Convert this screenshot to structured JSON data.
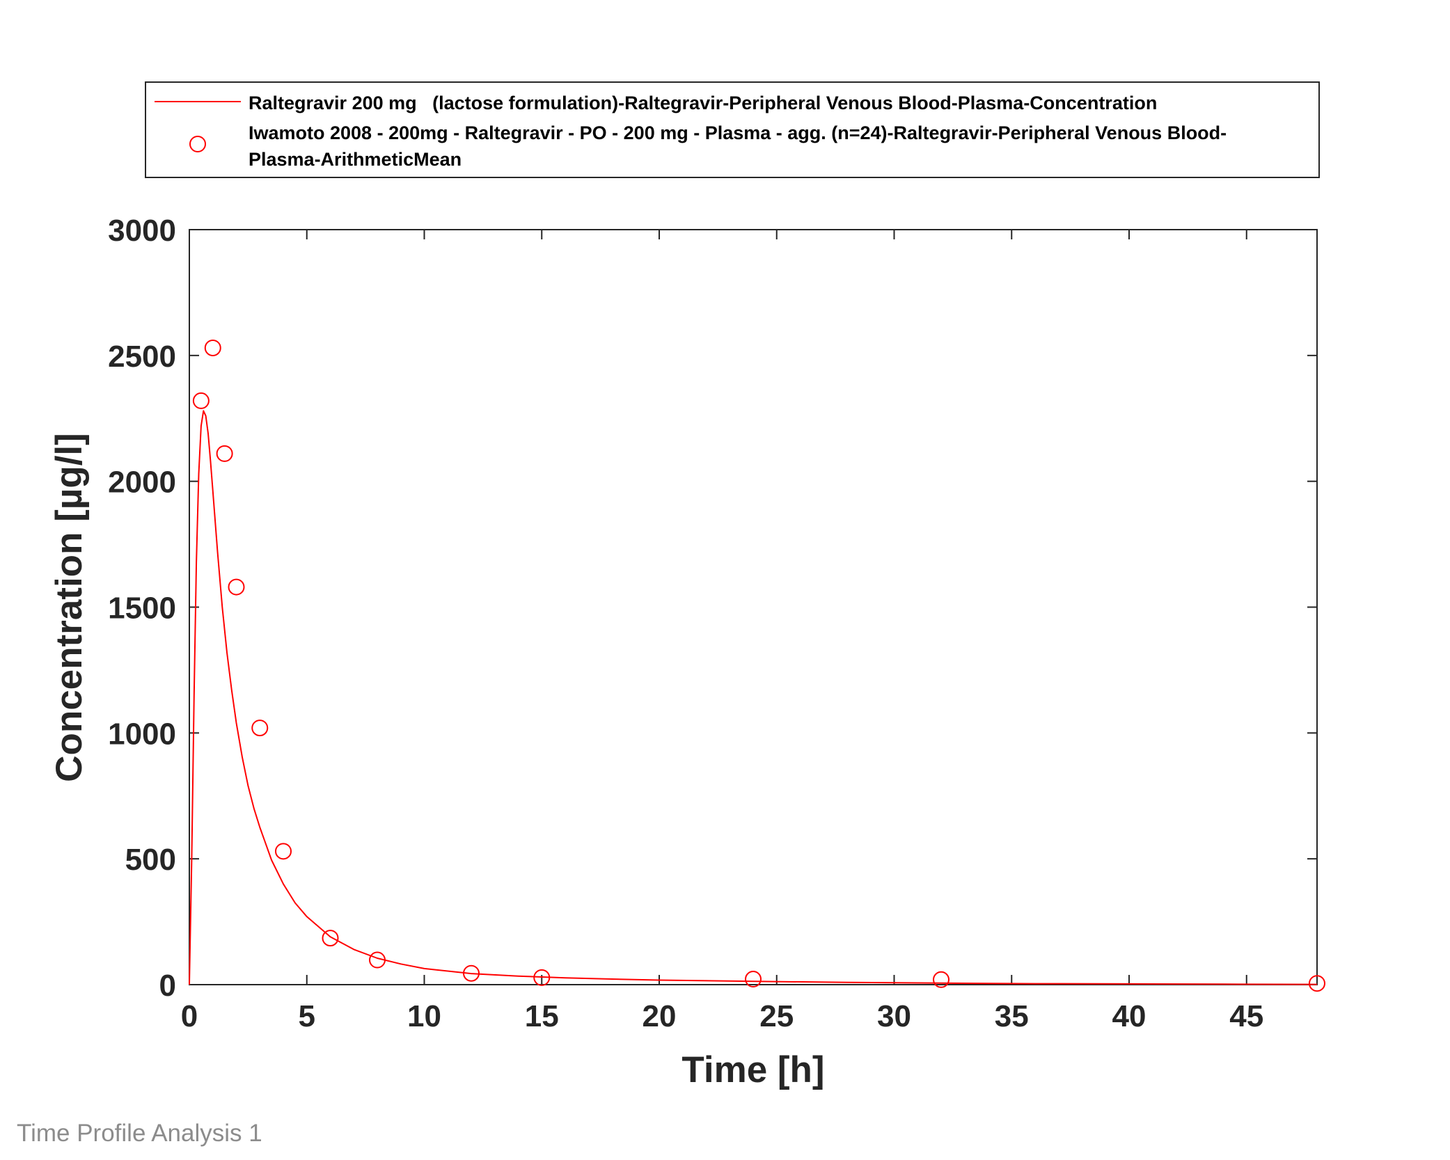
{
  "chart_data": {
    "type": "line",
    "xlabel": "Time [h]",
    "ylabel": "Concentration [µg/l]",
    "xlim": [
      0,
      48
    ],
    "ylim": [
      0,
      3000
    ],
    "xticks": [
      0,
      5,
      10,
      15,
      20,
      25,
      30,
      35,
      40,
      45
    ],
    "xtick_labels": [
      "0",
      "5",
      "10",
      "15",
      "20",
      "25",
      "30",
      "35",
      "40",
      "45"
    ],
    "yticks": [
      0,
      500,
      1000,
      1500,
      2000,
      2500,
      3000
    ],
    "ytick_labels": [
      "0",
      "500",
      "1000",
      "1500",
      "2000",
      "2500",
      "3000"
    ],
    "grid": false,
    "legend_position": "top (outside plot)",
    "series": [
      {
        "name": "Raltegravir 200 mg   (lactose formulation)-Raltegravir-Peripheral Venous Blood-Plasma-Concentration",
        "kind": "line",
        "color": "#ff0000",
        "x": [
          0,
          0.1,
          0.2,
          0.3,
          0.4,
          0.5,
          0.6,
          0.7,
          0.8,
          0.9,
          1.0,
          1.2,
          1.4,
          1.6,
          1.8,
          2.0,
          2.25,
          2.5,
          2.75,
          3.0,
          3.5,
          4.0,
          4.5,
          5.0,
          6.0,
          7.0,
          8.0,
          9.0,
          10.0,
          12.0,
          14.0,
          16.0,
          18.0,
          20.0,
          24.0,
          28.0,
          32.0,
          36.0,
          40.0,
          44.0,
          48.0
        ],
        "y": [
          0,
          500,
          1150,
          1680,
          2030,
          2220,
          2280,
          2260,
          2190,
          2080,
          1960,
          1720,
          1500,
          1320,
          1170,
          1040,
          905,
          790,
          700,
          625,
          495,
          400,
          325,
          270,
          190,
          140,
          105,
          82,
          64,
          44,
          34,
          27,
          22,
          18,
          13,
          9,
          6,
          4,
          3,
          2,
          1
        ]
      },
      {
        "name": "Iwamoto 2008 - 200mg - Raltegravir - PO - 200 mg - Plasma - agg. (n=24)-Raltegravir-Peripheral Venous Blood-Plasma-ArithmeticMean",
        "kind": "scatter",
        "marker": "open-circle",
        "color": "#ff0000",
        "x": [
          0.5,
          1,
          1.5,
          2,
          3,
          4,
          6,
          8,
          12,
          15,
          24,
          32,
          48
        ],
        "y": [
          2320,
          2530,
          2110,
          1580,
          1020,
          530,
          185,
          98,
          45,
          28,
          22,
          20,
          5
        ]
      }
    ]
  },
  "legend": {
    "line_label_1": "Raltegravir 200 mg   (lactose formulation)-Raltegravir-Peripheral Venous Blood-Plasma-Concentration",
    "scatter_label_line1": "Iwamoto 2008 - 200mg - Raltegravir - PO - 200 mg - Plasma - agg. (n=24)-Raltegravir-Peripheral Venous Blood-",
    "scatter_label_line2": "Plasma-ArithmeticMean"
  },
  "footer": {
    "caption": "Time Profile Analysis 1"
  }
}
